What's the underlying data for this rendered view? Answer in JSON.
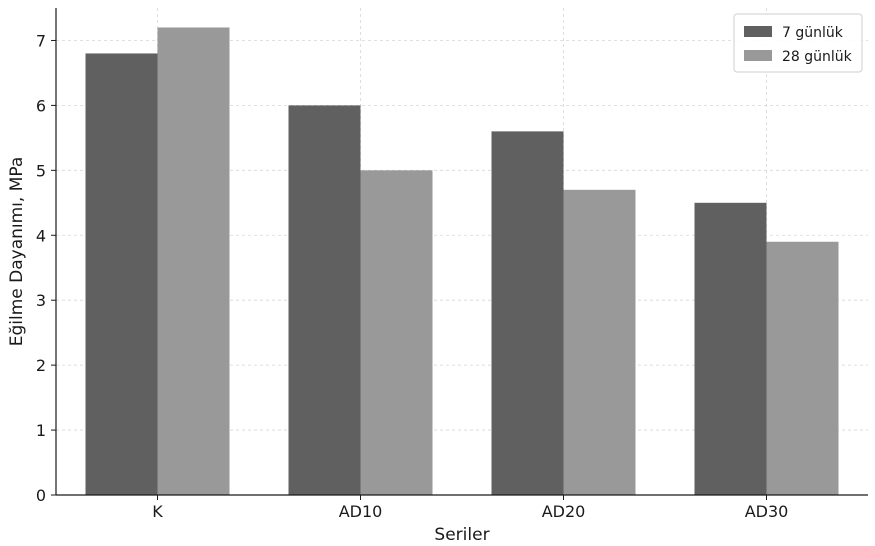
{
  "chart_data": {
    "type": "bar",
    "title": "",
    "xlabel": "Seriler",
    "ylabel": "Eğilme Dayanımı, MPa",
    "categories": [
      "K",
      "AD10",
      "AD20",
      "AD30"
    ],
    "series": [
      {
        "name": "7 günlük",
        "color": "#606060",
        "values": [
          6.8,
          6.0,
          5.6,
          4.5
        ]
      },
      {
        "name": "28 günlük",
        "color": "#999999",
        "values": [
          7.2,
          5.0,
          4.7,
          3.9
        ]
      }
    ],
    "ylim": [
      0,
      7.5
    ],
    "yticks": [
      "0",
      "1",
      "2",
      "3",
      "4",
      "5",
      "6",
      "7"
    ],
    "grid": true,
    "legend_position": "top-right"
  }
}
